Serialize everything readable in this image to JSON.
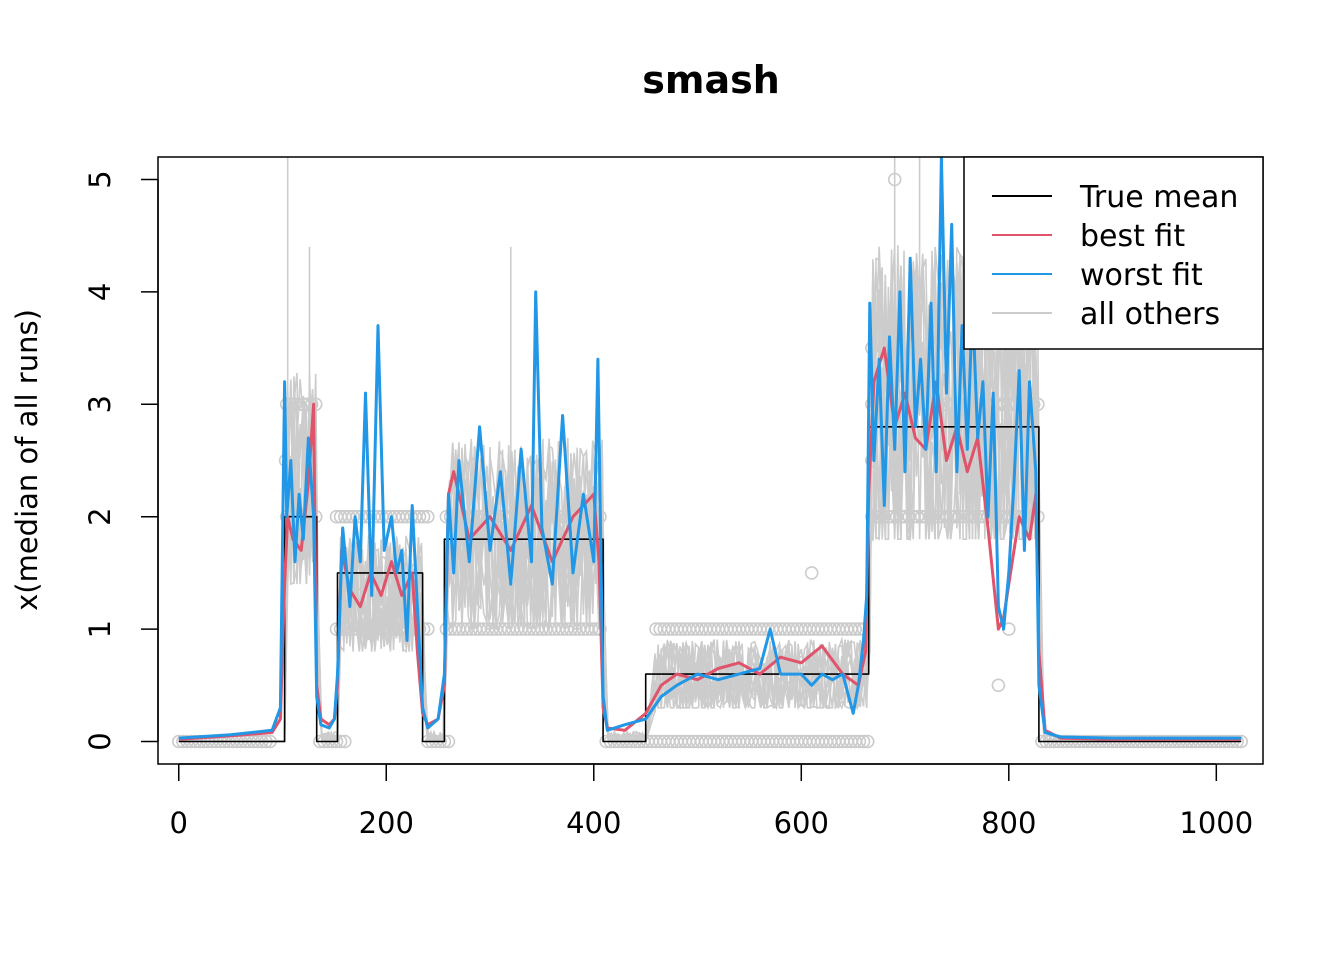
{
  "chart_data": {
    "type": "line",
    "title": "smash",
    "xlabel": "",
    "ylabel": "x(median of all runs)",
    "xlim": [
      -20,
      1045
    ],
    "ylim": [
      -0.2,
      5.2
    ],
    "xticks": [
      0,
      200,
      400,
      600,
      800,
      1000
    ],
    "yticks": [
      0,
      1,
      2,
      3,
      4,
      5
    ],
    "grid": false,
    "legend_position": "top-right",
    "colors": {
      "true_mean": "#000000",
      "best_fit": "#df536b",
      "worst_fit": "#2297e6",
      "all_others": "#cccccc"
    },
    "series": [
      {
        "name": "True mean",
        "key": "true_mean",
        "style": "step",
        "x": [
          0,
          102,
          102,
          133,
          133,
          153,
          153,
          235,
          235,
          256,
          256,
          409,
          409,
          450,
          450,
          665,
          665,
          829,
          829,
          1024
        ],
        "values": [
          0,
          0,
          2,
          2,
          0,
          0,
          1.5,
          1.5,
          0,
          0,
          1.8,
          1.8,
          0,
          0,
          0.6,
          0.6,
          2.8,
          2.8,
          0,
          0
        ]
      },
      {
        "name": "best fit",
        "key": "best_fit",
        "style": "line",
        "x": [
          0,
          50,
          90,
          98,
          102,
          105,
          110,
          118,
          125,
          130,
          133,
          137,
          145,
          150,
          153,
          157,
          165,
          175,
          185,
          195,
          205,
          215,
          225,
          230,
          235,
          240,
          250,
          256,
          260,
          265,
          280,
          300,
          320,
          340,
          360,
          380,
          400,
          405,
          409,
          413,
          430,
          450,
          465,
          480,
          500,
          520,
          540,
          560,
          580,
          600,
          620,
          640,
          655,
          662,
          665,
          670,
          680,
          690,
          700,
          710,
          720,
          730,
          740,
          750,
          760,
          770,
          780,
          790,
          795,
          800,
          810,
          820,
          826,
          829,
          835,
          850,
          900,
          950,
          1000,
          1024
        ],
        "values": [
          0.02,
          0.05,
          0.08,
          0.2,
          1.4,
          2.0,
          1.8,
          1.7,
          2.3,
          3.0,
          0.5,
          0.2,
          0.15,
          0.2,
          0.5,
          1.7,
          1.35,
          1.2,
          1.5,
          1.3,
          1.6,
          1.3,
          1.5,
          0.8,
          0.25,
          0.15,
          0.2,
          0.5,
          2.2,
          2.4,
          1.8,
          2.0,
          1.7,
          2.1,
          1.6,
          2.0,
          2.2,
          1.6,
          0.3,
          0.12,
          0.1,
          0.25,
          0.5,
          0.6,
          0.55,
          0.65,
          0.7,
          0.6,
          0.75,
          0.7,
          0.85,
          0.6,
          0.5,
          0.8,
          2.2,
          3.2,
          3.5,
          2.8,
          3.1,
          2.7,
          2.6,
          3.2,
          2.5,
          2.8,
          2.4,
          2.7,
          1.9,
          1.0,
          1.1,
          1.4,
          2.0,
          1.8,
          2.2,
          0.8,
          0.1,
          0.03,
          0.02,
          0.02,
          0.02,
          0.02
        ]
      },
      {
        "name": "worst fit",
        "key": "worst_fit",
        "style": "line",
        "x": [
          0,
          50,
          90,
          98,
          102,
          104,
          108,
          112,
          116,
          120,
          125,
          130,
          133,
          137,
          145,
          150,
          153,
          158,
          165,
          170,
          175,
          180,
          186,
          192,
          198,
          205,
          210,
          215,
          220,
          225,
          230,
          235,
          240,
          250,
          256,
          260,
          265,
          270,
          280,
          290,
          300,
          310,
          320,
          330,
          340,
          344,
          350,
          360,
          370,
          380,
          390,
          400,
          404,
          409,
          413,
          430,
          450,
          465,
          480,
          500,
          520,
          540,
          560,
          570,
          580,
          600,
          610,
          620,
          630,
          640,
          650,
          655,
          660,
          663,
          666,
          670,
          675,
          680,
          685,
          690,
          695,
          700,
          705,
          710,
          715,
          720,
          725,
          730,
          735,
          740,
          745,
          750,
          755,
          760,
          765,
          770,
          775,
          780,
          785,
          790,
          795,
          800,
          805,
          810,
          815,
          820,
          826,
          829,
          835,
          850,
          900,
          950,
          1000,
          1024
        ],
        "values": [
          0.03,
          0.06,
          0.1,
          0.3,
          3.2,
          2.0,
          2.5,
          1.6,
          2.2,
          1.8,
          2.7,
          2.0,
          0.4,
          0.15,
          0.12,
          0.2,
          0.6,
          1.9,
          1.2,
          2.0,
          1.6,
          3.1,
          1.3,
          3.7,
          1.7,
          2.0,
          1.5,
          1.7,
          0.9,
          2.1,
          1.2,
          0.3,
          0.12,
          0.2,
          0.6,
          2.2,
          1.5,
          2.5,
          1.6,
          2.8,
          1.7,
          2.4,
          1.4,
          2.6,
          1.6,
          4.0,
          1.9,
          1.4,
          2.9,
          1.5,
          2.2,
          1.6,
          3.4,
          0.4,
          0.1,
          0.15,
          0.2,
          0.4,
          0.5,
          0.6,
          0.55,
          0.6,
          0.65,
          1.0,
          0.6,
          0.6,
          0.5,
          0.6,
          0.55,
          0.6,
          0.25,
          0.5,
          0.9,
          1.3,
          3.9,
          2.5,
          3.4,
          2.1,
          3.6,
          2.6,
          4.0,
          2.4,
          4.3,
          2.8,
          3.4,
          2.6,
          3.9,
          2.4,
          5.2,
          3.1,
          4.6,
          2.4,
          3.7,
          2.6,
          3.9,
          2.7,
          3.2,
          2.0,
          3.1,
          1.2,
          1.0,
          1.5,
          2.3,
          3.3,
          1.7,
          3.2,
          2.4,
          0.5,
          0.08,
          0.04,
          0.03,
          0.03,
          0.03,
          0.03
        ]
      },
      {
        "name": "all others",
        "key": "all_others",
        "style": "lines-and-points",
        "levels": {
          "x": [
            0,
            102,
            105,
            133,
            136,
            153,
            156,
            235,
            238,
            256,
            259,
            409,
            412,
            450,
            460,
            665,
            668,
            829,
            832,
            1024
          ],
          "mid": [
            0,
            0,
            2.2,
            2.2,
            0,
            0,
            1.3,
            1.3,
            0,
            0,
            1.8,
            1.8,
            0,
            0,
            0.55,
            0.55,
            2.9,
            2.9,
            0,
            0
          ],
          "low": [
            0,
            0,
            1.4,
            1.4,
            0,
            0,
            0.8,
            0.8,
            0,
            0,
            1.0,
            1.0,
            0,
            0,
            0.3,
            0.3,
            1.8,
            1.8,
            0,
            0
          ],
          "high": [
            0.02,
            0.02,
            3.8,
            3.8,
            0.2,
            0.2,
            2.0,
            2.0,
            0.2,
            0.2,
            3.0,
            3.0,
            0.2,
            0.2,
            1.1,
            1.1,
            5.2,
            5.2,
            0.05,
            0.05
          ]
        },
        "spikes": [
          [
            105,
            5.2
          ],
          [
            126,
            4.4
          ],
          [
            320,
            4.4
          ],
          [
            690,
            5.2
          ],
          [
            714,
            5.2
          ],
          [
            757,
            5.2
          ]
        ],
        "points": [
          [
            [
              0,
              90
            ],
            0
          ],
          [
            [
              104,
              132
            ],
            2
          ],
          [
            [
              104,
              132
            ],
            3
          ],
          [
            [
              136,
              160
            ],
            0
          ],
          [
            [
              152,
              240
            ],
            1
          ],
          [
            [
              152,
              240
            ],
            2
          ],
          [
            [
              240,
              260
            ],
            0
          ],
          [
            [
              258,
              408
            ],
            1
          ],
          [
            [
              258,
              408
            ],
            2
          ],
          [
            [
              412,
              666
            ],
            0
          ],
          [
            [
              460,
              660
            ],
            1
          ],
          [
            [
              668,
              828
            ],
            2
          ],
          [
            [
              668,
              828
            ],
            3
          ],
          [
            [
              832,
              1024
            ],
            0
          ]
        ],
        "extra_points": [
          [
            103,
            2.5
          ],
          [
            668,
            2.5
          ],
          [
            668,
            3.5
          ],
          [
            690,
            5.0
          ],
          [
            790,
            0.5
          ],
          [
            800,
            1.0
          ],
          [
            610,
            1.5
          ],
          [
            405,
            1.0
          ]
        ]
      }
    ]
  }
}
